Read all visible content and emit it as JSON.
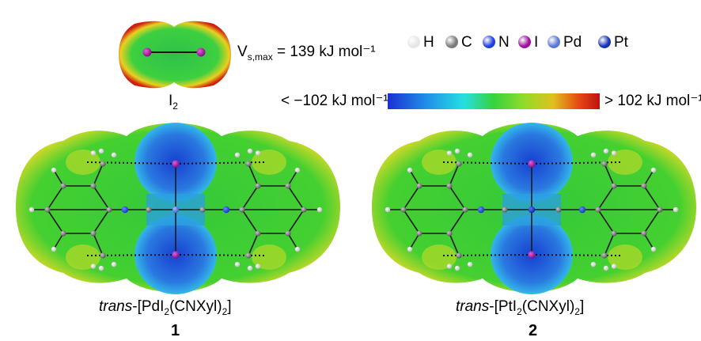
{
  "i2": {
    "vs_prefix": "V",
    "vs_sub": "s,max",
    "vs_value": " = 139 kJ mol⁻¹",
    "label_main": "I",
    "label_sub": "2"
  },
  "legend": {
    "atoms": [
      {
        "label": "H",
        "color": "#e6e6e6"
      },
      {
        "label": "C",
        "color": "#7a7a7a"
      },
      {
        "label": "N",
        "color": "#1f3fe0"
      },
      {
        "label": "I",
        "color": "#a0109c"
      },
      {
        "label": "Pd",
        "color": "#5a78d8"
      },
      {
        "label": "Pt",
        "color": "#1533b8"
      }
    ]
  },
  "colorbar": {
    "min_label": "< −102 kJ mol⁻¹",
    "max_label": "> 102 kJ mol⁻¹",
    "stops": [
      "#1a2fd4",
      "#1f8ee8",
      "#26e0e0",
      "#36d23c",
      "#8fdc2a",
      "#e0c020",
      "#e64a12",
      "#c01010"
    ]
  },
  "complexes": [
    {
      "name_italic": "trans",
      "name_a": "-[PdI",
      "sub_a": "2",
      "name_b": "(CNXyl)",
      "sub_b": "2",
      "name_c": "]",
      "number": "1",
      "metal_color": "#5a78d8"
    },
    {
      "name_italic": "trans",
      "name_a": "-[PtI",
      "sub_a": "2",
      "name_b": "(CNXyl)",
      "sub_b": "2",
      "name_c": "]",
      "number": "2",
      "metal_color": "#1533b8"
    }
  ]
}
